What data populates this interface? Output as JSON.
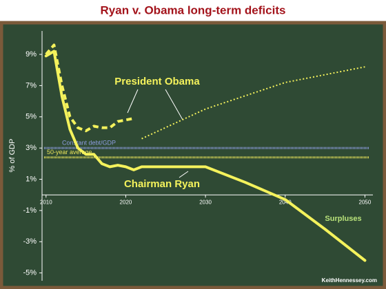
{
  "chart_data": {
    "type": "line",
    "title": "Ryan v. Obama long-term deficits",
    "ylabel": "% of GDP",
    "xlim": [
      2009.5,
      2051
    ],
    "xticks": [
      2010,
      2020,
      2030,
      2040,
      2050
    ],
    "ylim": [
      -5.5,
      10.5
    ],
    "yticks": [
      {
        "value": -5,
        "label": "-5%"
      },
      {
        "value": -3,
        "label": "-3%"
      },
      {
        "value": -1,
        "label": "-1%"
      },
      {
        "value": 1,
        "label": "1%"
      },
      {
        "value": 3,
        "label": "3%"
      },
      {
        "value": 5,
        "label": "5%"
      },
      {
        "value": 7,
        "label": "7%"
      },
      {
        "value": 9,
        "label": "9%"
      }
    ],
    "series": [
      {
        "name": "Chairman Ryan",
        "color": "#f4f25c",
        "style": [
          "solid"
        ],
        "x": [
          2010,
          2011,
          2012,
          2013,
          2014,
          2015,
          2016,
          2017,
          2018,
          2019,
          2020,
          2021,
          2022,
          2030,
          2035,
          2040,
          2045,
          2050
        ],
        "values": [
          8.9,
          9.2,
          6.3,
          4.2,
          3.0,
          2.6,
          2.6,
          2.0,
          1.8,
          1.9,
          1.8,
          1.6,
          1.8,
          1.8,
          0.8,
          -0.3,
          -2.2,
          -4.2
        ]
      },
      {
        "name": "President Obama",
        "color": "#f4f25c",
        "style": [
          "dashed",
          "dotted"
        ],
        "x": [
          2010,
          2011,
          2012,
          2013,
          2014,
          2015,
          2016,
          2017,
          2018,
          2019,
          2020,
          2021,
          null,
          2022,
          2030,
          2040,
          2050
        ],
        "values": [
          9.0,
          9.6,
          7.0,
          5.0,
          4.3,
          4.1,
          4.4,
          4.3,
          4.3,
          4.7,
          4.8,
          4.9,
          null,
          3.6,
          5.5,
          7.2,
          8.2
        ]
      }
    ],
    "reference_lines": [
      {
        "label": "Constant debt/GDP",
        "value": 3.0,
        "color": "#8d9de0"
      },
      {
        "label": "50-year average",
        "value": 2.4,
        "color": "#e8e35a"
      }
    ],
    "annotations": [
      "Surpluses",
      "KeithHennessey.com"
    ]
  }
}
